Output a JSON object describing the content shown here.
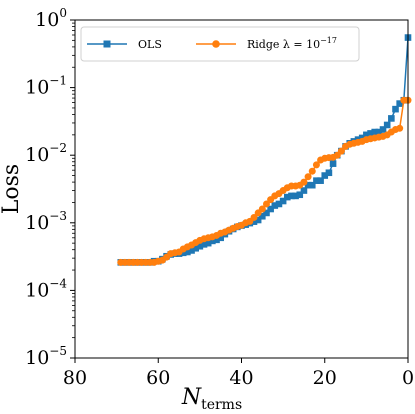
{
  "chart_data": {
    "type": "line",
    "xlabel": "N",
    "xlabel_sub": "terms",
    "ylabel": "Loss",
    "xlim": [
      80,
      0
    ],
    "ylim": [
      1e-05,
      1
    ],
    "yscale": "log",
    "x_ticks": [
      {
        "value": 80,
        "label": "80"
      },
      {
        "value": 60,
        "label": "60"
      },
      {
        "value": 40,
        "label": "40"
      },
      {
        "value": 20,
        "label": "20"
      },
      {
        "value": 0,
        "label": "0"
      }
    ],
    "y_ticks": [
      {
        "value": 1,
        "base": "10",
        "exp": "0"
      },
      {
        "value": 0.1,
        "base": "10",
        "exp": "−1"
      },
      {
        "value": 0.01,
        "base": "10",
        "exp": "−2"
      },
      {
        "value": 0.001,
        "base": "10",
        "exp": "−3"
      },
      {
        "value": 0.0001,
        "base": "10",
        "exp": "−4"
      },
      {
        "value": 1e-05,
        "base": "10",
        "exp": "−5"
      }
    ],
    "grid": false,
    "legend_position": "top",
    "series": [
      {
        "name": "OLS",
        "color": "#1f77b4",
        "marker": "square",
        "x": [
          69,
          68,
          67,
          66,
          65,
          64,
          63,
          62,
          61,
          60,
          59,
          58,
          57,
          56,
          55,
          54,
          53,
          52,
          51,
          50,
          49,
          48,
          47,
          46,
          45,
          44,
          43,
          42,
          41,
          40,
          39,
          38,
          37,
          36,
          35,
          34,
          33,
          32,
          31,
          30,
          29,
          28,
          27,
          26,
          25,
          24,
          23,
          22,
          21,
          20,
          19,
          18,
          17,
          16,
          15,
          14,
          13,
          12,
          11,
          10,
          9,
          8,
          7,
          6,
          5,
          4,
          3,
          2,
          1,
          0
        ],
        "y": [
          0.00026,
          0.00026,
          0.00026,
          0.00026,
          0.00026,
          0.00026,
          0.00026,
          0.00026,
          0.00027,
          0.00027,
          0.00029,
          0.00032,
          0.00034,
          0.00035,
          0.00035,
          0.00036,
          0.00037,
          0.00039,
          0.00042,
          0.00045,
          0.00048,
          0.0005,
          0.00054,
          0.00056,
          0.0006,
          0.00068,
          0.00075,
          0.00081,
          0.00087,
          0.00091,
          0.00094,
          0.00099,
          0.00104,
          0.0011,
          0.00125,
          0.0014,
          0.0016,
          0.0018,
          0.0019,
          0.0021,
          0.0024,
          0.0025,
          0.0025,
          0.0026,
          0.003,
          0.0036,
          0.0036,
          0.0042,
          0.0042,
          0.005,
          0.0055,
          0.0075,
          0.01,
          0.0115,
          0.0135,
          0.015,
          0.016,
          0.017,
          0.018,
          0.02,
          0.021,
          0.022,
          0.022,
          0.024,
          0.028,
          0.035,
          0.048,
          0.058,
          0.065,
          0.55
        ]
      },
      {
        "name": "Ridge λ = 10",
        "name_exp": "−17",
        "color": "#ff7f0e",
        "marker": "circle",
        "x": [
          69,
          68,
          67,
          66,
          65,
          64,
          63,
          62,
          61,
          60,
          59,
          58,
          57,
          56,
          55,
          54,
          53,
          52,
          51,
          50,
          49,
          48,
          47,
          46,
          45,
          44,
          43,
          42,
          41,
          40,
          39,
          38,
          37,
          36,
          35,
          34,
          33,
          32,
          31,
          30,
          29,
          28,
          27,
          26,
          25,
          24,
          23,
          22,
          21,
          20,
          19,
          18,
          17,
          16,
          15,
          14,
          13,
          12,
          11,
          10,
          9,
          8,
          7,
          6,
          5,
          4,
          3,
          2,
          1,
          0
        ],
        "y": [
          0.00026,
          0.00026,
          0.00026,
          0.00026,
          0.00026,
          0.00026,
          0.00026,
          0.00026,
          0.00026,
          0.00027,
          0.00028,
          0.00031,
          0.00035,
          0.00036,
          0.00037,
          0.00041,
          0.00044,
          0.00047,
          0.00051,
          0.00055,
          0.00058,
          0.0006,
          0.00062,
          0.00065,
          0.0007,
          0.00073,
          0.00078,
          0.00083,
          0.00088,
          0.00092,
          0.001,
          0.00105,
          0.0012,
          0.0014,
          0.0016,
          0.0019,
          0.0022,
          0.0025,
          0.0027,
          0.003,
          0.0033,
          0.0035,
          0.0035,
          0.0036,
          0.004,
          0.0048,
          0.0058,
          0.0072,
          0.0085,
          0.009,
          0.0092,
          0.0093,
          0.01,
          0.0115,
          0.0135,
          0.0145,
          0.015,
          0.0155,
          0.016,
          0.017,
          0.0175,
          0.018,
          0.0185,
          0.019,
          0.02,
          0.022,
          0.024,
          0.025,
          0.065,
          0.065
        ]
      }
    ]
  }
}
